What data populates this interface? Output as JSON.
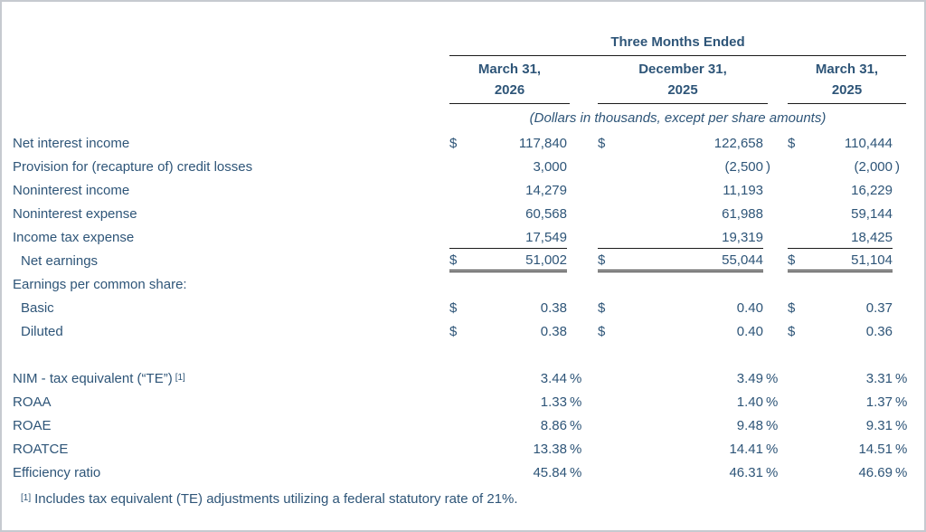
{
  "theme": {
    "text_color": "#2e5578",
    "rule_color": "#1b1b1b",
    "page_border_color": "#c6cad0"
  },
  "header": {
    "title": "Three Months Ended",
    "subtitle": "(Dollars in thousands, except per share amounts)",
    "columns": [
      {
        "line1": "March 31,",
        "line2": "2026"
      },
      {
        "line1": "December 31,",
        "line2": "2025"
      },
      {
        "line1": "March 31,",
        "line2": "2025"
      }
    ]
  },
  "rows": [
    {
      "label": "Net interest income",
      "c1": {
        "d": "$",
        "v": "117,840",
        "s": ""
      },
      "c2": {
        "d": "$",
        "v": "122,658",
        "s": ""
      },
      "c3": {
        "d": "$",
        "v": "110,444",
        "s": ""
      }
    },
    {
      "label": "Provision for (recapture of) credit losses",
      "c1": {
        "d": "",
        "v": "3,000",
        "s": ""
      },
      "c2": {
        "d": "",
        "v": "(2,500",
        "s": ")"
      },
      "c3": {
        "d": "",
        "v": "(2,000",
        "s": ")"
      }
    },
    {
      "label": "Noninterest income",
      "c1": {
        "d": "",
        "v": "14,279",
        "s": ""
      },
      "c2": {
        "d": "",
        "v": "11,193",
        "s": ""
      },
      "c3": {
        "d": "",
        "v": "16,229",
        "s": ""
      }
    },
    {
      "label": "Noninterest expense",
      "c1": {
        "d": "",
        "v": "60,568",
        "s": ""
      },
      "c2": {
        "d": "",
        "v": "61,988",
        "s": ""
      },
      "c3": {
        "d": "",
        "v": "59,144",
        "s": ""
      }
    },
    {
      "label": "Income tax expense",
      "c1": {
        "d": "",
        "v": "17,549",
        "s": ""
      },
      "c2": {
        "d": "",
        "v": "19,319",
        "s": ""
      },
      "c3": {
        "d": "",
        "v": "18,425",
        "s": ""
      }
    },
    {
      "label": "Net earnings",
      "c1": {
        "d": "$",
        "v": "51,002",
        "s": ""
      },
      "c2": {
        "d": "$",
        "v": "55,044",
        "s": ""
      },
      "c3": {
        "d": "$",
        "v": "51,104",
        "s": ""
      }
    },
    {
      "label": "Earnings per common share:",
      "c1": {
        "d": "",
        "v": "",
        "s": ""
      },
      "c2": {
        "d": "",
        "v": "",
        "s": ""
      },
      "c3": {
        "d": "",
        "v": "",
        "s": ""
      }
    },
    {
      "label": "Basic",
      "c1": {
        "d": "$",
        "v": "0.38",
        "s": ""
      },
      "c2": {
        "d": "$",
        "v": "0.40",
        "s": ""
      },
      "c3": {
        "d": "$",
        "v": "0.37",
        "s": ""
      }
    },
    {
      "label": "Diluted",
      "c1": {
        "d": "$",
        "v": "0.38",
        "s": ""
      },
      "c2": {
        "d": "$",
        "v": "0.40",
        "s": ""
      },
      "c3": {
        "d": "$",
        "v": "0.36",
        "s": ""
      }
    },
    {
      "label": "NIM - tax equivalent (“TE”)",
      "label_sup": "[1]",
      "c1": {
        "d": "",
        "v": "3.44",
        "s": "%"
      },
      "c2": {
        "d": "",
        "v": "3.49",
        "s": "%"
      },
      "c3": {
        "d": "",
        "v": "3.31",
        "s": "%"
      }
    },
    {
      "label": "ROAA",
      "c1": {
        "d": "",
        "v": "1.33",
        "s": "%"
      },
      "c2": {
        "d": "",
        "v": "1.40",
        "s": "%"
      },
      "c3": {
        "d": "",
        "v": "1.37",
        "s": "%"
      }
    },
    {
      "label": "ROAE",
      "c1": {
        "d": "",
        "v": "8.86",
        "s": "%"
      },
      "c2": {
        "d": "",
        "v": "9.48",
        "s": "%"
      },
      "c3": {
        "d": "",
        "v": "9.31",
        "s": "%"
      }
    },
    {
      "label": "ROATCE",
      "c1": {
        "d": "",
        "v": "13.38",
        "s": "%"
      },
      "c2": {
        "d": "",
        "v": "14.41",
        "s": "%"
      },
      "c3": {
        "d": "",
        "v": "14.51",
        "s": "%"
      }
    },
    {
      "label": "Efficiency ratio",
      "c1": {
        "d": "",
        "v": "45.84",
        "s": "%"
      },
      "c2": {
        "d": "",
        "v": "46.31",
        "s": "%"
      },
      "c3": {
        "d": "",
        "v": "46.69",
        "s": "%"
      }
    }
  ],
  "footnote": {
    "sup": "[1]",
    "text": "Includes tax equivalent (TE) adjustments utilizing a federal statutory rate of 21%."
  }
}
